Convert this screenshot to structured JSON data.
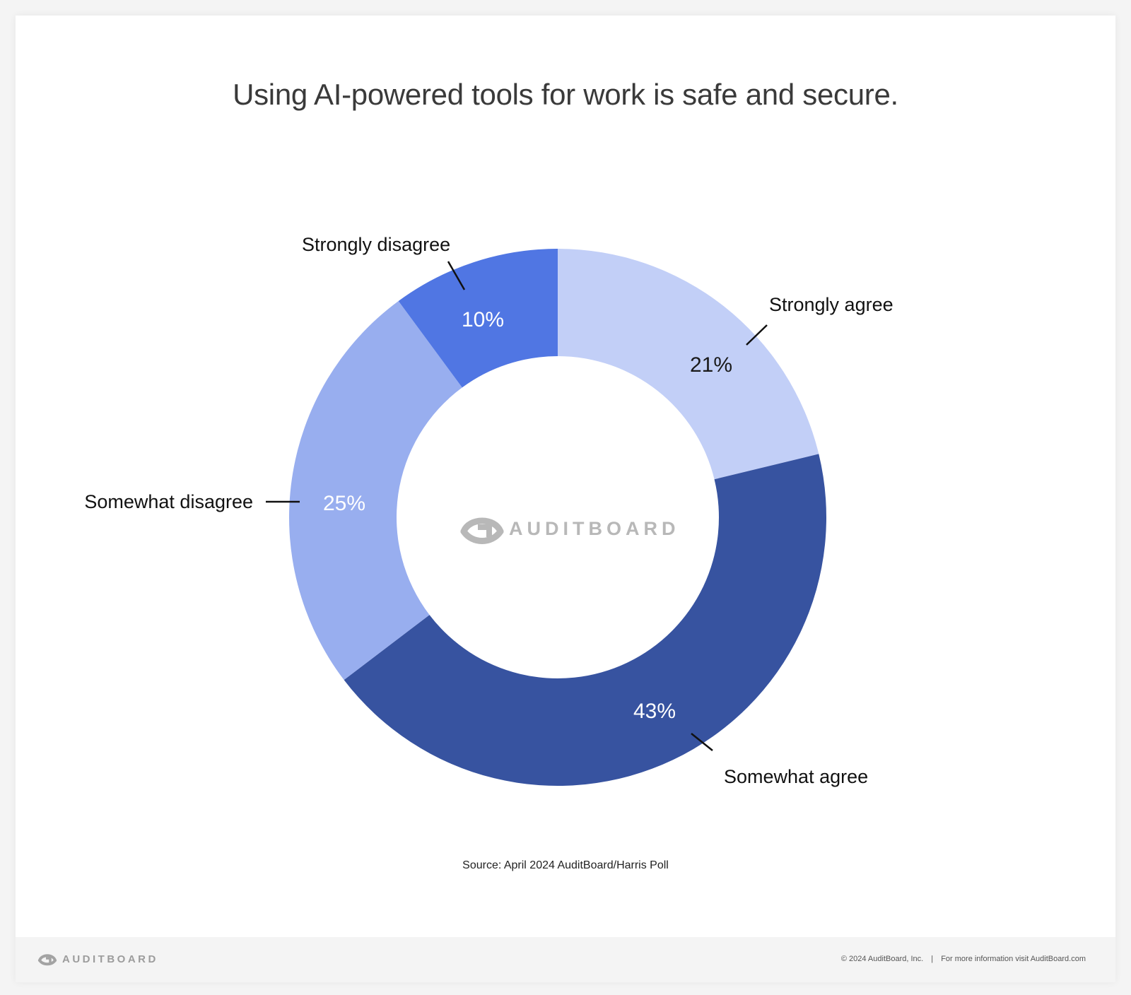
{
  "chart_data": {
    "type": "pie",
    "title": "Using AI-powered tools for work is safe and secure.",
    "slices": [
      {
        "label": "Strongly agree",
        "value": 21,
        "value_label": "21%",
        "color": "#c2cff7",
        "text_color": "#1a1a1a"
      },
      {
        "label": "Somewhat agree",
        "value": 43,
        "value_label": "43%",
        "color": "#3753a0",
        "text_color": "#ffffff"
      },
      {
        "label": "Somewhat disagree",
        "value": 25,
        "value_label": "25%",
        "color": "#98aeef",
        "text_color": "#ffffff"
      },
      {
        "label": "Strongly disagree",
        "value": 10,
        "value_label": "10%",
        "color": "#5076e3",
        "text_color": "#ffffff"
      }
    ],
    "center_logo": "AUDITBOARD"
  },
  "source": "Source: April 2024 AuditBoard/Harris Poll",
  "footer": {
    "logo": "AUDITBOARD",
    "copyright": "© 2024  AuditBoard, Inc.",
    "separator": "|",
    "info": "For more information visit AuditBoard.com"
  },
  "icons": {
    "logo_mark": "auditboard-logo-icon"
  }
}
